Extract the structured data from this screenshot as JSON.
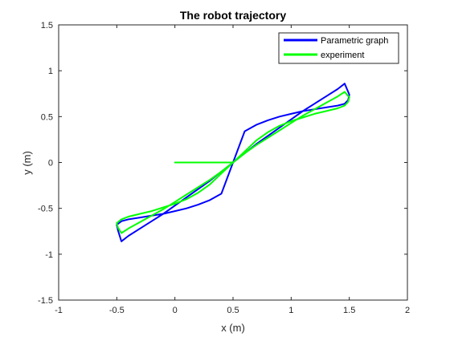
{
  "chart_data": {
    "type": "line",
    "title": "The robot trajectory",
    "xlabel": "x (m)",
    "ylabel": "y (m)",
    "xlim": [
      -1,
      2
    ],
    "ylim": [
      -1.5,
      1.5
    ],
    "xticks": [
      -1,
      -0.5,
      0,
      0.5,
      1,
      1.5,
      2
    ],
    "yticks": [
      -1.5,
      -1,
      -0.5,
      0,
      0.5,
      1,
      1.5
    ],
    "xtick_labels": [
      "-1",
      "-0.5",
      "0",
      "0.5",
      "1",
      "1.5",
      "2"
    ],
    "ytick_labels": [
      "-1.5",
      "-1",
      "-0.5",
      "0",
      "0.5",
      "1",
      "1.5"
    ],
    "grid": false,
    "legend_position": "top-right",
    "series": [
      {
        "name": "Parametric graph",
        "color": "#0000ff",
        "x": [
          0.5,
          0.6,
          0.7,
          0.8,
          0.9,
          1.0,
          1.1,
          1.2,
          1.3,
          1.4,
          1.46,
          1.5,
          1.49,
          1.46,
          1.4,
          1.3,
          1.2,
          1.1,
          1.0,
          0.9,
          0.8,
          0.7,
          0.6,
          0.5,
          0.4,
          0.3,
          0.2,
          0.1,
          0.0,
          -0.1,
          -0.2,
          -0.3,
          -0.4,
          -0.46,
          -0.5,
          -0.49,
          -0.46,
          -0.4,
          -0.3,
          -0.2,
          -0.1,
          0.0,
          0.1,
          0.2,
          0.3,
          0.4,
          0.5,
          0.6,
          0.7,
          0.8,
          0.9,
          1.0,
          1.1,
          1.2,
          1.3,
          1.4,
          1.46,
          1.5,
          1.49,
          1.46,
          1.4,
          1.3,
          1.2,
          1.1,
          1.0,
          0.9,
          0.8,
          0.7,
          0.6,
          0.5,
          0.4,
          0.3,
          0.2,
          0.1,
          0.0,
          -0.1,
          -0.2,
          -0.3,
          -0.4,
          -0.46,
          -0.5,
          -0.49,
          -0.46,
          -0.4,
          -0.3,
          -0.2,
          -0.1,
          0.0,
          0.1,
          0.2,
          0.3,
          0.4,
          0.5
        ],
        "y": [
          0.0,
          0.1,
          0.2,
          0.29,
          0.38,
          0.47,
          0.56,
          0.64,
          0.72,
          0.8,
          0.86,
          0.74,
          0.68,
          0.64,
          0.62,
          0.6,
          0.58,
          0.56,
          0.53,
          0.5,
          0.46,
          0.41,
          0.34,
          0.0,
          -0.34,
          -0.41,
          -0.46,
          -0.5,
          -0.53,
          -0.56,
          -0.58,
          -0.6,
          -0.62,
          -0.64,
          -0.68,
          -0.74,
          -0.86,
          -0.8,
          -0.72,
          -0.64,
          -0.56,
          -0.47,
          -0.38,
          -0.29,
          -0.2,
          -0.1,
          0.0,
          0.1,
          0.2,
          0.29,
          0.38,
          0.47,
          0.56,
          0.64,
          0.72,
          0.8,
          0.86,
          0.74,
          0.68,
          0.64,
          0.62,
          0.6,
          0.58,
          0.56,
          0.53,
          0.5,
          0.46,
          0.41,
          0.34,
          0.0,
          -0.34,
          -0.41,
          -0.46,
          -0.5,
          -0.53,
          -0.56,
          -0.58,
          -0.6,
          -0.62,
          -0.64,
          -0.68,
          -0.74,
          -0.86,
          -0.8,
          -0.72,
          -0.64,
          -0.56,
          -0.47,
          -0.38,
          -0.29,
          -0.2,
          -0.1,
          0.0
        ]
      },
      {
        "name": "experiment",
        "color": "#00ff00",
        "x": [
          0.0,
          0.1,
          0.2,
          0.3,
          0.4,
          0.5,
          0.6,
          0.7,
          0.8,
          0.9,
          1.0,
          1.1,
          1.2,
          1.3,
          1.4,
          1.46,
          1.5,
          1.49,
          1.46,
          1.4,
          1.3,
          1.2,
          1.1,
          1.0,
          0.9,
          0.8,
          0.7,
          0.6,
          0.5,
          0.4,
          0.3,
          0.2,
          0.1,
          0.0,
          -0.1,
          -0.2,
          -0.3,
          -0.4,
          -0.46,
          -0.5,
          -0.49,
          -0.46,
          -0.4,
          -0.3,
          -0.2,
          -0.1,
          0.0,
          0.1,
          0.2,
          0.3,
          0.4,
          0.5,
          0.6,
          0.7,
          0.8,
          0.9,
          1.0,
          1.1,
          1.2,
          1.3,
          1.4,
          1.46,
          1.5,
          1.49,
          1.46,
          1.4,
          1.3,
          1.2,
          1.1,
          1.0,
          0.9,
          0.8,
          0.7,
          0.6,
          0.5,
          0.4,
          0.3,
          0.2,
          0.1,
          0.0,
          -0.1,
          -0.2,
          -0.3,
          -0.4,
          -0.46,
          -0.5,
          -0.49,
          -0.46,
          -0.4,
          -0.3,
          -0.2,
          -0.1,
          0.0,
          0.1,
          0.2,
          0.3,
          0.4,
          0.5
        ],
        "y": [
          0.0,
          0.0,
          0.0,
          0.0,
          0.0,
          0.0,
          0.1,
          0.19,
          0.27,
          0.35,
          0.43,
          0.51,
          0.58,
          0.65,
          0.72,
          0.77,
          0.71,
          0.66,
          0.62,
          0.59,
          0.56,
          0.53,
          0.49,
          0.45,
          0.4,
          0.33,
          0.24,
          0.12,
          0.0,
          -0.12,
          -0.24,
          -0.33,
          -0.4,
          -0.45,
          -0.49,
          -0.53,
          -0.56,
          -0.59,
          -0.62,
          -0.66,
          -0.71,
          -0.77,
          -0.72,
          -0.65,
          -0.58,
          -0.51,
          -0.43,
          -0.35,
          -0.27,
          -0.19,
          -0.1,
          0.0,
          0.1,
          0.19,
          0.27,
          0.35,
          0.43,
          0.51,
          0.58,
          0.65,
          0.72,
          0.77,
          0.71,
          0.66,
          0.62,
          0.59,
          0.56,
          0.53,
          0.49,
          0.45,
          0.4,
          0.33,
          0.24,
          0.12,
          0.0,
          -0.12,
          -0.24,
          -0.33,
          -0.4,
          -0.45,
          -0.49,
          -0.53,
          -0.56,
          -0.59,
          -0.62,
          -0.66,
          -0.71,
          -0.77,
          -0.72,
          -0.65,
          -0.58,
          -0.51,
          -0.43,
          -0.35,
          -0.27,
          -0.19,
          -0.1,
          0.0
        ]
      }
    ]
  }
}
